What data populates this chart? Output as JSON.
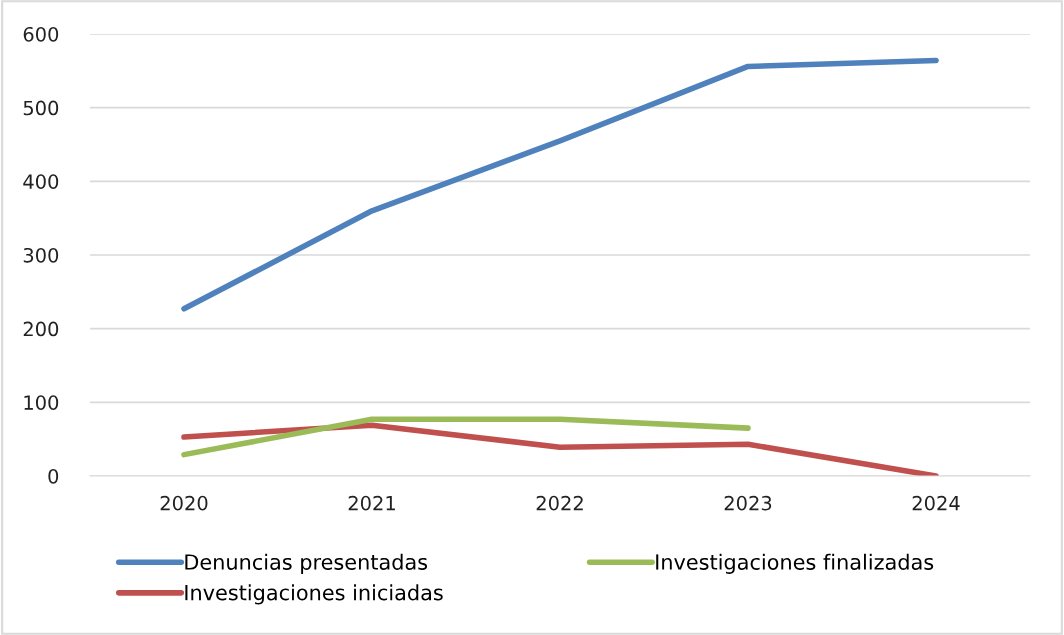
{
  "chart_data": {
    "type": "line",
    "categories": [
      "2020",
      "2021",
      "2022",
      "2023",
      "2024"
    ],
    "series": [
      {
        "name": "Denuncias presentadas",
        "color": "#4f81bd",
        "values": [
          227,
          360,
          455,
          556,
          564
        ]
      },
      {
        "name": "Investigaciones iniciadas",
        "color": "#c0504d",
        "values": [
          53,
          69,
          39,
          43,
          0
        ]
      },
      {
        "name": "Investigaciones finalizadas",
        "color": "#9bbb59",
        "values": [
          29,
          77,
          77,
          65,
          null
        ]
      }
    ],
    "ylim": [
      0,
      600
    ],
    "yticks": [
      0,
      100,
      200,
      300,
      400,
      500,
      600
    ],
    "grid": "y",
    "legend": "bottom",
    "marker": "none",
    "line_style": "solid"
  }
}
